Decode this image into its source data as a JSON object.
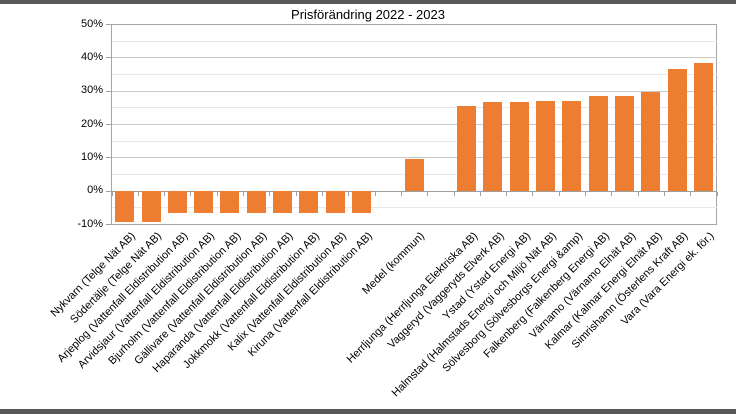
{
  "page": {
    "band_color": "#595959",
    "background": "#FFFFFF"
  },
  "chart_data": {
    "type": "bar",
    "title": "Prisförändring 2022 - 2023",
    "xlabel": "",
    "ylabel": "",
    "ylim": [
      -10,
      50
    ],
    "grid": "on",
    "legend": "none",
    "bar_color": "#ED7D31",
    "grid_major_color": "#C9C9C9",
    "grid_minor_color": "#E8E8E8",
    "axis_color": "#9E9E9E",
    "plot_border_color": "#A6A6A6",
    "ytick_labels": [
      "50%",
      "40%",
      "30%",
      "20%",
      "10%",
      "0%",
      "-10%"
    ],
    "ytick_values": [
      50,
      40,
      30,
      20,
      10,
      0,
      -10
    ],
    "major_gridlines": [
      40,
      30,
      20,
      10
    ],
    "minor_gridlines": [
      45,
      35,
      25,
      15,
      5,
      -5
    ],
    "slots": [
      {
        "label": "Nykvarn (Telge Nät AB)",
        "value": -9.4
      },
      {
        "label": "Södertälje (Telge Nät AB)",
        "value": -9.4
      },
      {
        "label": "Arjeplog (Vattenfall Eldistribution AB)",
        "value": -6.7
      },
      {
        "label": "Arvidsjaur (Vattenfall Eldistribution AB)",
        "value": -6.7
      },
      {
        "label": "Bjurholm (Vattenfall Eldistribution AB)",
        "value": -6.7
      },
      {
        "label": "Gällivare (Vattenfall Eldistribution AB)",
        "value": -6.7
      },
      {
        "label": "Haparanda (Vattenfall Eldistribution AB)",
        "value": -6.7
      },
      {
        "label": "Jokkmokk (Vattenfall Eldistribution AB)",
        "value": -6.7
      },
      {
        "label": "Kalix (Vattenfall Eldistribution AB)",
        "value": -6.7
      },
      {
        "label": "Kiruna (Vattenfall Eldistribution AB)",
        "value": -6.7
      },
      {
        "label": "",
        "value": null
      },
      {
        "label": "Medel (kommun)",
        "value": 9.5
      },
      {
        "label": "",
        "value": null
      },
      {
        "label": "Herrljunga (Herrljunga Elektriska AB)",
        "value": 25.3
      },
      {
        "label": "Vaggeryd (Vaggeryds Elverk AB)",
        "value": 26.5
      },
      {
        "label": "Ystad (Ystad Energi AB)",
        "value": 26.7
      },
      {
        "label": "Halmstad (Halmstads Energi och Miljö Nät AB)",
        "value": 27.0
      },
      {
        "label": "Sölvesborg (Sölvesborgs Energi &amp)",
        "value": 27.0
      },
      {
        "label": "Falkenberg (Falkenberg Energi AB)",
        "value": 28.3
      },
      {
        "label": "Värnamo (Värnamo Elnät AB)",
        "value": 28.3
      },
      {
        "label": "Kalmar (Kalmar Energi Elnät AB)",
        "value": 29.7
      },
      {
        "label": "Simrishamn (Österlens Kraft AB)",
        "value": 36.6
      },
      {
        "label": "Vara (Vara Energi ek. för.)",
        "value": 38.2
      }
    ]
  }
}
